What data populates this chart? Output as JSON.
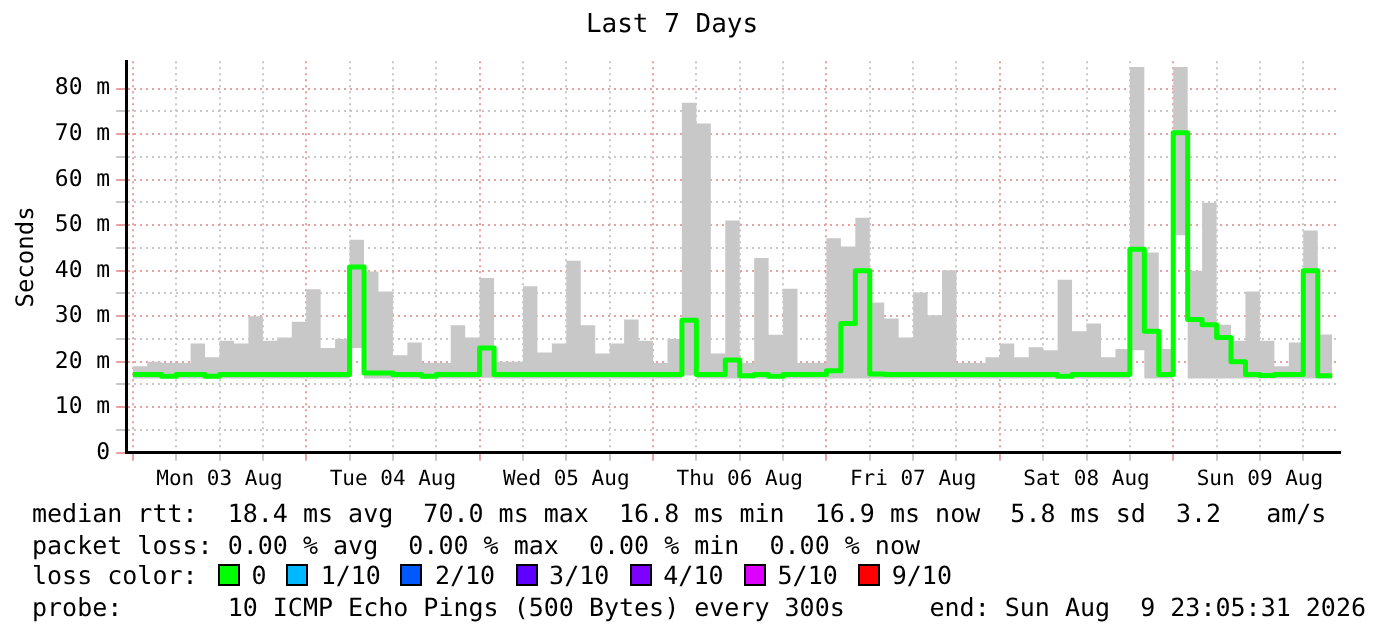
{
  "chart_data": {
    "type": "step",
    "title": "Last 7 Days",
    "ylabel": "Seconds",
    "legend_title": "loss color:",
    "legend": "bottom",
    "grid": true,
    "marker": "none",
    "x": [
      "2026-08-03T00:00",
      "2026-08-03T02:00",
      "2026-08-03T04:00",
      "2026-08-03T06:00",
      "2026-08-03T08:00",
      "2026-08-03T10:00",
      "2026-08-03T12:00",
      "2026-08-03T14:00",
      "2026-08-03T16:00",
      "2026-08-03T18:00",
      "2026-08-03T20:00",
      "2026-08-03T22:00",
      "2026-08-04T00:00",
      "2026-08-04T02:00",
      "2026-08-04T04:00",
      "2026-08-04T06:00",
      "2026-08-04T08:00",
      "2026-08-04T10:00",
      "2026-08-04T12:00",
      "2026-08-04T14:00",
      "2026-08-04T16:00",
      "2026-08-04T18:00",
      "2026-08-04T20:00",
      "2026-08-04T22:00",
      "2026-08-05T00:00",
      "2026-08-05T02:00",
      "2026-08-05T04:00",
      "2026-08-05T06:00",
      "2026-08-05T08:00",
      "2026-08-05T10:00",
      "2026-08-05T12:00",
      "2026-08-05T14:00",
      "2026-08-05T16:00",
      "2026-08-05T18:00",
      "2026-08-05T20:00",
      "2026-08-05T22:00",
      "2026-08-06T00:00",
      "2026-08-06T02:00",
      "2026-08-06T04:00",
      "2026-08-06T06:00",
      "2026-08-06T08:00",
      "2026-08-06T10:00",
      "2026-08-06T12:00",
      "2026-08-06T14:00",
      "2026-08-06T16:00",
      "2026-08-06T18:00",
      "2026-08-06T20:00",
      "2026-08-06T22:00",
      "2026-08-07T00:00",
      "2026-08-07T02:00",
      "2026-08-07T04:00",
      "2026-08-07T06:00",
      "2026-08-07T08:00",
      "2026-08-07T10:00",
      "2026-08-07T12:00",
      "2026-08-07T14:00",
      "2026-08-07T16:00",
      "2026-08-07T18:00",
      "2026-08-07T20:00",
      "2026-08-07T22:00",
      "2026-08-08T00:00",
      "2026-08-08T02:00",
      "2026-08-08T04:00",
      "2026-08-08T06:00",
      "2026-08-08T08:00",
      "2026-08-08T10:00",
      "2026-08-08T12:00",
      "2026-08-08T14:00",
      "2026-08-08T16:00",
      "2026-08-08T18:00",
      "2026-08-08T20:00",
      "2026-08-08T22:00",
      "2026-08-09T00:00",
      "2026-08-09T02:00",
      "2026-08-09T04:00",
      "2026-08-09T06:00",
      "2026-08-09T08:00",
      "2026-08-09T10:00",
      "2026-08-09T12:00",
      "2026-08-09T14:00",
      "2026-08-09T16:00",
      "2026-08-09T18:00",
      "2026-08-09T20:00",
      "2026-08-09T22:00"
    ],
    "xlim": [
      "2026-08-02T23:05",
      "2026-08-09T23:05"
    ],
    "xticks": [
      {
        "value": "2026-08-03T00:00",
        "label": null
      },
      {
        "value": "2026-08-03T06:00",
        "label": null
      },
      {
        "value": "2026-08-03T12:00",
        "label": "Mon 03 Aug"
      },
      {
        "value": "2026-08-03T18:00",
        "label": null
      },
      {
        "value": "2026-08-04T00:00",
        "label": null
      },
      {
        "value": "2026-08-04T06:00",
        "label": null
      },
      {
        "value": "2026-08-04T12:00",
        "label": "Tue 04 Aug"
      },
      {
        "value": "2026-08-04T18:00",
        "label": null
      },
      {
        "value": "2026-08-05T00:00",
        "label": null
      },
      {
        "value": "2026-08-05T06:00",
        "label": null
      },
      {
        "value": "2026-08-05T12:00",
        "label": "Wed 05 Aug"
      },
      {
        "value": "2026-08-05T18:00",
        "label": null
      },
      {
        "value": "2026-08-06T00:00",
        "label": null
      },
      {
        "value": "2026-08-06T06:00",
        "label": null
      },
      {
        "value": "2026-08-06T12:00",
        "label": "Thu 06 Aug"
      },
      {
        "value": "2026-08-06T18:00",
        "label": null
      },
      {
        "value": "2026-08-07T00:00",
        "label": null
      },
      {
        "value": "2026-08-07T06:00",
        "label": null
      },
      {
        "value": "2026-08-07T12:00",
        "label": "Fri 07 Aug"
      },
      {
        "value": "2026-08-07T18:00",
        "label": null
      },
      {
        "value": "2026-08-08T00:00",
        "label": null
      },
      {
        "value": "2026-08-08T06:00",
        "label": null
      },
      {
        "value": "2026-08-08T12:00",
        "label": "Sat 08 Aug"
      },
      {
        "value": "2026-08-08T18:00",
        "label": null
      },
      {
        "value": "2026-08-09T00:00",
        "label": null
      },
      {
        "value": "2026-08-09T06:00",
        "label": null
      },
      {
        "value": "2026-08-09T12:00",
        "label": "Sun 09 Aug"
      },
      {
        "value": "2026-08-09T18:00",
        "label": null
      }
    ],
    "ylim": [
      0,
      86
    ],
    "yticks": [
      0,
      {
        "value": 5,
        "label": null
      },
      {
        "value": 10,
        "label": "10 m"
      },
      {
        "value": 15,
        "label": null
      },
      {
        "value": 20,
        "label": "20 m"
      },
      {
        "value": 25,
        "label": null
      },
      {
        "value": 30,
        "label": "30 m"
      },
      {
        "value": 35,
        "label": null
      },
      {
        "value": 40,
        "label": "40 m"
      },
      {
        "value": 45,
        "label": null
      },
      {
        "value": 50,
        "label": "50 m"
      },
      {
        "value": 55,
        "label": null
      },
      {
        "value": 60,
        "label": "60 m"
      },
      {
        "value": 65,
        "label": null
      },
      {
        "value": 70,
        "label": "70 m"
      },
      {
        "value": 75,
        "label": null
      },
      {
        "value": 80,
        "label": "80 m"
      }
    ],
    "series": [
      {
        "name": "0",
        "color": "#00ff00",
        "values": [
          17.2,
          17.2,
          16.8,
          17.2,
          17.2,
          16.8,
          17.2,
          17.2,
          17.2,
          17.2,
          17.2,
          17.2,
          17.2,
          17.2,
          17.2,
          40.8,
          17.5,
          17.5,
          17.2,
          17.2,
          16.8,
          17.2,
          17.2,
          17.2,
          23,
          17.2,
          17.2,
          17.2,
          17.2,
          17.2,
          17.2,
          17.2,
          17.2,
          17.2,
          17.2,
          17.2,
          17.2,
          17.2,
          29.1,
          17.2,
          17.2,
          20.4,
          16.9,
          17.2,
          16.8,
          17.2,
          17.2,
          17.2,
          18,
          28.4,
          40,
          17.3,
          17.2,
          17.2,
          17.2,
          17.2,
          17.2,
          17.2,
          17.2,
          17.2,
          17.2,
          17.2,
          17.2,
          17.2,
          16.8,
          17.2,
          17.2,
          17.2,
          17.2,
          44.7,
          26.7,
          17.2,
          70.3,
          29.3,
          28.1,
          25.3,
          20,
          17.2,
          17,
          17.2,
          17.2,
          40,
          16.9,
          16.9
        ],
        "lower": [
          16.3,
          16.3,
          16.3,
          16.3,
          16.3,
          16.3,
          16.3,
          16.3,
          16.3,
          16.3,
          16.3,
          16.3,
          16.3,
          16.3,
          16.3,
          23,
          16.3,
          16.3,
          16.3,
          16.3,
          16.3,
          16.3,
          16.3,
          16.3,
          16.5,
          16.3,
          16.3,
          16.3,
          16.3,
          16.3,
          16.3,
          16.3,
          16.3,
          16.3,
          16.3,
          16.3,
          16.3,
          16.3,
          17,
          16.3,
          16.3,
          16.3,
          16.3,
          16.3,
          16.3,
          16.3,
          16.3,
          16.3,
          16.3,
          16.3,
          16.3,
          16.3,
          16.3,
          16.3,
          16.3,
          16.3,
          16.3,
          16.3,
          16.3,
          16.3,
          16.3,
          16.3,
          16.3,
          16.3,
          16.3,
          16.3,
          16.3,
          16.3,
          16.3,
          22.5,
          16.3,
          16.3,
          47.8,
          16.3,
          16.3,
          16.3,
          16.3,
          16.3,
          16.3,
          16.3,
          16.3,
          16.3,
          16.3,
          16.3
        ],
        "upper": [
          19,
          20,
          19.7,
          19.7,
          24,
          21,
          24.6,
          24,
          30,
          24.6,
          25.3,
          28.8,
          35.9,
          23,
          25,
          46.8,
          39.8,
          35.4,
          21.4,
          24.2,
          19.7,
          19.7,
          28,
          25.3,
          38.4,
          20,
          20,
          36.6,
          22,
          24,
          42.2,
          28,
          21.8,
          24,
          29.3,
          24.6,
          19.7,
          25,
          76.9,
          72.3,
          21.8,
          51,
          19.7,
          42.8,
          25.9,
          36,
          19.7,
          19.7,
          47.1,
          45.3,
          51.6,
          33,
          29.5,
          25.3,
          35.2,
          30.2,
          40.1,
          19.7,
          19.7,
          21,
          24,
          21,
          23.2,
          22.5,
          38,
          26.7,
          28.4,
          21,
          22.8,
          84.7,
          44,
          22.8,
          84.7,
          40,
          54.9,
          28.1,
          24.6,
          35.4,
          24.6,
          19,
          24.2,
          48.8,
          26,
          21
        ]
      },
      {
        "name": "1/10",
        "color": "#00b8ff",
        "values": [
          null,
          null,
          null,
          null,
          null,
          null,
          null,
          null,
          null,
          null,
          null,
          null,
          null,
          null,
          null,
          null,
          null,
          null,
          null,
          null,
          null,
          null,
          null,
          null,
          null,
          null,
          null,
          null,
          null,
          null,
          null,
          null,
          null,
          null,
          null,
          null,
          null,
          null,
          null,
          null,
          null,
          null,
          null,
          null,
          null,
          null,
          null,
          null,
          null,
          null,
          null,
          null,
          null,
          null,
          null,
          null,
          null,
          null,
          null,
          null,
          null,
          null,
          null,
          null,
          null,
          null,
          null,
          null,
          null,
          null,
          null,
          null,
          null,
          null,
          null,
          null,
          null,
          null,
          null,
          null,
          null,
          null,
          null,
          null
        ]
      },
      {
        "name": "2/10",
        "color": "#0059ff",
        "values": [
          null,
          null,
          null,
          null,
          null,
          null,
          null,
          null,
          null,
          null,
          null,
          null,
          null,
          null,
          null,
          null,
          null,
          null,
          null,
          null,
          null,
          null,
          null,
          null,
          null,
          null,
          null,
          null,
          null,
          null,
          null,
          null,
          null,
          null,
          null,
          null,
          null,
          null,
          null,
          null,
          null,
          null,
          null,
          null,
          null,
          null,
          null,
          null,
          null,
          null,
          null,
          null,
          null,
          null,
          null,
          null,
          null,
          null,
          null,
          null,
          null,
          null,
          null,
          null,
          null,
          null,
          null,
          null,
          null,
          null,
          null,
          null,
          null,
          null,
          null,
          null,
          null,
          null,
          null,
          null,
          null,
          null,
          null,
          null
        ]
      },
      {
        "name": "3/10",
        "color": "#5e00ff",
        "values": [
          null,
          null,
          null,
          null,
          null,
          null,
          null,
          null,
          null,
          null,
          null,
          null,
          null,
          null,
          null,
          null,
          null,
          null,
          null,
          null,
          null,
          null,
          null,
          null,
          null,
          null,
          null,
          null,
          null,
          null,
          null,
          null,
          null,
          null,
          null,
          null,
          null,
          null,
          null,
          null,
          null,
          null,
          null,
          null,
          null,
          null,
          null,
          null,
          null,
          null,
          null,
          null,
          null,
          null,
          null,
          null,
          null,
          null,
          null,
          null,
          null,
          null,
          null,
          null,
          null,
          null,
          null,
          null,
          null,
          null,
          null,
          null,
          null,
          null,
          null,
          null,
          null,
          null,
          null,
          null,
          null,
          null,
          null,
          null
        ]
      },
      {
        "name": "4/10",
        "color": "#7e00ff",
        "values": [
          null,
          null,
          null,
          null,
          null,
          null,
          null,
          null,
          null,
          null,
          null,
          null,
          null,
          null,
          null,
          null,
          null,
          null,
          null,
          null,
          null,
          null,
          null,
          null,
          null,
          null,
          null,
          null,
          null,
          null,
          null,
          null,
          null,
          null,
          null,
          null,
          null,
          null,
          null,
          null,
          null,
          null,
          null,
          null,
          null,
          null,
          null,
          null,
          null,
          null,
          null,
          null,
          null,
          null,
          null,
          null,
          null,
          null,
          null,
          null,
          null,
          null,
          null,
          null,
          null,
          null,
          null,
          null,
          null,
          null,
          null,
          null,
          null,
          null,
          null,
          null,
          null,
          null,
          null,
          null,
          null,
          null,
          null,
          null
        ]
      },
      {
        "name": "5/10",
        "color": "#dd00ff",
        "values": [
          null,
          null,
          null,
          null,
          null,
          null,
          null,
          null,
          null,
          null,
          null,
          null,
          null,
          null,
          null,
          null,
          null,
          null,
          null,
          null,
          null,
          null,
          null,
          null,
          null,
          null,
          null,
          null,
          null,
          null,
          null,
          null,
          null,
          null,
          null,
          null,
          null,
          null,
          null,
          null,
          null,
          null,
          null,
          null,
          null,
          null,
          null,
          null,
          null,
          null,
          null,
          null,
          null,
          null,
          null,
          null,
          null,
          null,
          null,
          null,
          null,
          null,
          null,
          null,
          null,
          null,
          null,
          null,
          null,
          null,
          null,
          null,
          null,
          null,
          null,
          null,
          null,
          null,
          null,
          null,
          null,
          null,
          null,
          null
        ]
      },
      {
        "name": "9/10",
        "color": "#ff0000",
        "values": [
          null,
          null,
          null,
          null,
          null,
          null,
          null,
          null,
          null,
          null,
          null,
          null,
          null,
          null,
          null,
          null,
          null,
          null,
          null,
          null,
          null,
          null,
          null,
          null,
          null,
          null,
          null,
          null,
          null,
          null,
          null,
          null,
          null,
          null,
          null,
          null,
          null,
          null,
          null,
          null,
          null,
          null,
          null,
          null,
          null,
          null,
          null,
          null,
          null,
          null,
          null,
          null,
          null,
          null,
          null,
          null,
          null,
          null,
          null,
          null,
          null,
          null,
          null,
          null,
          null,
          null,
          null,
          null,
          null,
          null,
          null,
          null,
          null,
          null,
          null,
          null,
          null,
          null,
          null,
          null,
          null,
          null,
          null,
          null
        ]
      }
    ],
    "annotations": [
      "median rtt:  18.4 ms avg  70.0 ms max  16.8 ms min  16.9 ms now  5.8 ms sd  3.2   am/s",
      "packet loss: 0.00 % avg  0.00 % max  0.00 % min  0.00 % now",
      "probe:       10 ICMP Echo Pings (500 Bytes) every 300s",
      "end: Sun Aug  9 23:05:31 2026"
    ]
  }
}
